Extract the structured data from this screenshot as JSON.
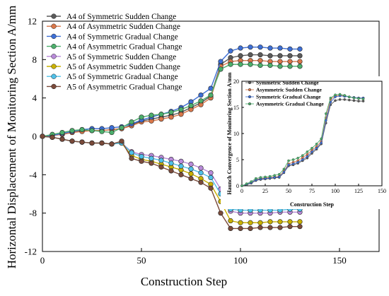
{
  "chart_data": [
    {
      "type": "line",
      "xlabel": "Construction Step",
      "ylabel": "Horizontal Displacement of Monitoring Section A/mm",
      "xlim": [
        0,
        170
      ],
      "ylim": [
        -12,
        12
      ],
      "xticks": [
        "0",
        "50",
        "100",
        "150"
      ],
      "yticks": [
        "-12",
        "-8",
        "-4",
        "0",
        "4",
        "8",
        "12"
      ],
      "grid": false,
      "legend_position": "top-left",
      "series": [
        {
          "name": "A4 of Symmetric Sudden Change",
          "color": "#5a5a5a",
          "x": [
            0,
            5,
            10,
            15,
            20,
            25,
            30,
            35,
            40,
            45,
            50,
            55,
            60,
            65,
            70,
            75,
            80,
            85,
            90,
            95,
            100,
            105,
            110,
            115,
            120,
            125,
            130
          ],
          "y": [
            0,
            0.1,
            0.2,
            0.4,
            0.6,
            0.6,
            0.6,
            0.7,
            0.8,
            1.2,
            1.6,
            1.8,
            2.0,
            2.2,
            2.5,
            3.0,
            3.5,
            4.2,
            7.5,
            8.2,
            8.4,
            8.5,
            8.5,
            8.4,
            8.4,
            8.4,
            8.4
          ]
        },
        {
          "name": "A4 of Asymmetric Sudden Change",
          "color": "#d9774a",
          "x": [
            0,
            5,
            10,
            15,
            20,
            25,
            30,
            35,
            40,
            45,
            50,
            55,
            60,
            65,
            70,
            75,
            80,
            85,
            90,
            95,
            100,
            105,
            110,
            115,
            120,
            125,
            130
          ],
          "y": [
            0,
            0.1,
            0.2,
            0.4,
            0.5,
            0.6,
            0.6,
            0.7,
            0.8,
            1.1,
            1.5,
            1.6,
            1.8,
            2.0,
            2.3,
            2.8,
            3.3,
            4.0,
            7.3,
            7.8,
            7.9,
            7.9,
            7.9,
            7.8,
            7.8,
            7.8,
            7.8
          ]
        },
        {
          "name": "A4 of Symmetric Gradual Change",
          "color": "#3d6fd6",
          "x": [
            0,
            5,
            10,
            15,
            20,
            25,
            30,
            35,
            40,
            45,
            50,
            55,
            60,
            65,
            70,
            75,
            80,
            85,
            90,
            95,
            100,
            105,
            110,
            115,
            120,
            125,
            130
          ],
          "y": [
            0,
            0.1,
            0.3,
            0.5,
            0.7,
            0.8,
            0.8,
            0.9,
            1.0,
            1.3,
            1.7,
            2.0,
            2.3,
            2.6,
            3.0,
            3.6,
            4.3,
            5.0,
            7.8,
            8.9,
            9.2,
            9.3,
            9.3,
            9.2,
            9.2,
            9.1,
            9.1
          ]
        },
        {
          "name": "A4 of Asymmetric Gradual Change",
          "color": "#4caf6c",
          "x": [
            0,
            5,
            10,
            15,
            20,
            25,
            30,
            35,
            40,
            45,
            50,
            55,
            60,
            65,
            70,
            75,
            80,
            85,
            90,
            95,
            100,
            105,
            110,
            115,
            120,
            125,
            130
          ],
          "y": [
            0,
            0.2,
            0.4,
            0.6,
            0.7,
            0.6,
            0.5,
            0.4,
            0.9,
            1.5,
            2.0,
            2.2,
            2.3,
            2.5,
            2.8,
            3.2,
            3.7,
            4.3,
            7.0,
            7.5,
            7.5,
            7.5,
            7.4,
            7.4,
            7.3,
            7.3,
            7.3
          ]
        },
        {
          "name": "A5 of Symmetric Sudden Change",
          "color": "#b88ad9",
          "x": [
            0,
            5,
            10,
            15,
            20,
            25,
            30,
            35,
            40,
            45,
            50,
            55,
            60,
            65,
            70,
            75,
            80,
            85,
            90,
            95,
            100,
            105,
            110,
            115,
            120,
            125,
            130
          ],
          "y": [
            0,
            -0.1,
            -0.3,
            -0.5,
            -0.6,
            -0.7,
            -0.7,
            -0.8,
            -0.7,
            -1.6,
            -1.9,
            -2.0,
            -2.2,
            -2.4,
            -2.6,
            -2.9,
            -3.3,
            -3.8,
            -5.5,
            -7.8,
            -8.0,
            -8.0,
            -8.0,
            -8.0,
            -7.9,
            -7.9,
            -7.9
          ]
        },
        {
          "name": "A5 of Asymmetric Sudden Change",
          "color": "#c9b000",
          "x": [
            0,
            5,
            10,
            15,
            20,
            25,
            30,
            35,
            40,
            45,
            50,
            55,
            60,
            65,
            70,
            75,
            80,
            85,
            90,
            95,
            100,
            105,
            110,
            115,
            120,
            125,
            130
          ],
          "y": [
            0,
            -0.1,
            -0.3,
            -0.5,
            -0.6,
            -0.7,
            -0.7,
            -0.8,
            -0.7,
            -2.0,
            -2.4,
            -2.6,
            -2.9,
            -3.2,
            -3.5,
            -3.9,
            -4.4,
            -5.0,
            -6.8,
            -8.8,
            -9.0,
            -9.0,
            -9.0,
            -8.9,
            -8.9,
            -8.9,
            -8.9
          ]
        },
        {
          "name": "A5 of Symmetric Gradual Change",
          "color": "#4fc0e8",
          "x": [
            0,
            5,
            10,
            15,
            20,
            25,
            30,
            35,
            40,
            45,
            50,
            55,
            60,
            65,
            70,
            75,
            80,
            85,
            90,
            95,
            100,
            105,
            110,
            115,
            120,
            125,
            130
          ],
          "y": [
            0,
            -0.1,
            -0.3,
            -0.5,
            -0.6,
            -0.7,
            -0.7,
            -0.8,
            -0.7,
            -1.7,
            -2.1,
            -2.3,
            -2.5,
            -2.8,
            -3.1,
            -3.4,
            -3.8,
            -4.3,
            -6.0,
            -7.6,
            -7.7,
            -7.7,
            -7.7,
            -7.7,
            -7.7,
            -7.6,
            -7.6
          ]
        },
        {
          "name": "A5 of Asymmetric Gradual Change",
          "color": "#7a4a3a",
          "x": [
            0,
            5,
            10,
            15,
            20,
            25,
            30,
            35,
            40,
            45,
            50,
            55,
            60,
            65,
            70,
            75,
            80,
            85,
            90,
            95,
            100,
            105,
            110,
            115,
            120,
            125,
            130
          ],
          "y": [
            0,
            -0.1,
            -0.3,
            -0.5,
            -0.6,
            -0.7,
            -0.7,
            -0.8,
            -0.5,
            -2.3,
            -2.6,
            -2.8,
            -3.2,
            -3.6,
            -4.0,
            -4.4,
            -4.8,
            -5.4,
            -8.0,
            -9.6,
            -9.6,
            -9.6,
            -9.5,
            -9.5,
            -9.5,
            -9.4,
            -9.4
          ]
        }
      ]
    },
    {
      "type": "line",
      "xlabel": "Construction Step",
      "ylabel": "Haunch Convergence of Monitoring Section A/mm",
      "xlim": [
        0,
        150
      ],
      "ylim": [
        0,
        20
      ],
      "xticks": [
        "0",
        "25",
        "50",
        "75",
        "100",
        "125",
        "150"
      ],
      "yticks": [
        "0",
        "5",
        "10",
        "15",
        "20"
      ],
      "grid": false,
      "legend_position": "top-left",
      "series": [
        {
          "name": "Symmetric Sudden Change",
          "color": "#5a5a5a",
          "x": [
            0,
            5,
            10,
            15,
            20,
            25,
            30,
            35,
            40,
            45,
            50,
            55,
            60,
            65,
            70,
            75,
            80,
            85,
            90,
            95,
            100,
            105,
            110,
            115,
            120,
            125,
            130
          ],
          "y": [
            0,
            0.2,
            0.5,
            1.0,
            1.2,
            1.3,
            1.4,
            1.5,
            1.6,
            2.5,
            3.8,
            4.0,
            4.3,
            4.8,
            5.3,
            6.2,
            7.0,
            8.0,
            12.0,
            15.5,
            16.3,
            16.5,
            16.5,
            16.4,
            16.3,
            16.2,
            16.2
          ]
        },
        {
          "name": "Asymmetric Sudden Change",
          "color": "#d9774a",
          "x": [
            0,
            5,
            10,
            15,
            20,
            25,
            30,
            35,
            40,
            45,
            50,
            55,
            60,
            65,
            70,
            75,
            80,
            85,
            90,
            95,
            100,
            105,
            110,
            115,
            120,
            125,
            130
          ],
          "y": [
            0,
            0.3,
            0.6,
            1.2,
            1.4,
            1.5,
            1.6,
            1.7,
            1.8,
            2.8,
            4.2,
            4.5,
            4.8,
            5.4,
            6.0,
            6.8,
            7.5,
            8.5,
            13.0,
            16.5,
            17.2,
            17.3,
            17.2,
            17.0,
            16.9,
            16.8,
            16.8
          ]
        },
        {
          "name": "Symmetric Gradual Change",
          "color": "#3d6fd6",
          "x": [
            0,
            5,
            10,
            15,
            20,
            25,
            30,
            35,
            40,
            45,
            50,
            55,
            60,
            65,
            70,
            75,
            80,
            85,
            90,
            95,
            100,
            105,
            110,
            115,
            120,
            125,
            130
          ],
          "y": [
            0,
            0.3,
            0.6,
            1.1,
            1.3,
            1.4,
            1.5,
            1.6,
            1.7,
            2.6,
            4.0,
            4.2,
            4.5,
            5.0,
            5.6,
            6.5,
            7.2,
            8.2,
            12.5,
            16.0,
            17.0,
            17.2,
            17.1,
            17.0,
            16.9,
            16.8,
            16.8
          ]
        },
        {
          "name": "Asymmetric Gradual Change",
          "color": "#4caf6c",
          "x": [
            0,
            5,
            10,
            15,
            20,
            25,
            30,
            35,
            40,
            45,
            50,
            55,
            60,
            65,
            70,
            75,
            80,
            85,
            90,
            95,
            100,
            105,
            110,
            115,
            120,
            125,
            130
          ],
          "y": [
            0,
            0.4,
            0.8,
            1.4,
            1.6,
            1.7,
            1.8,
            2.0,
            2.2,
            3.2,
            4.8,
            5.0,
            5.3,
            5.8,
            6.5,
            7.2,
            8.0,
            9.0,
            13.8,
            16.8,
            17.4,
            17.5,
            17.3,
            17.0,
            16.8,
            16.7,
            16.6
          ]
        }
      ]
    }
  ]
}
